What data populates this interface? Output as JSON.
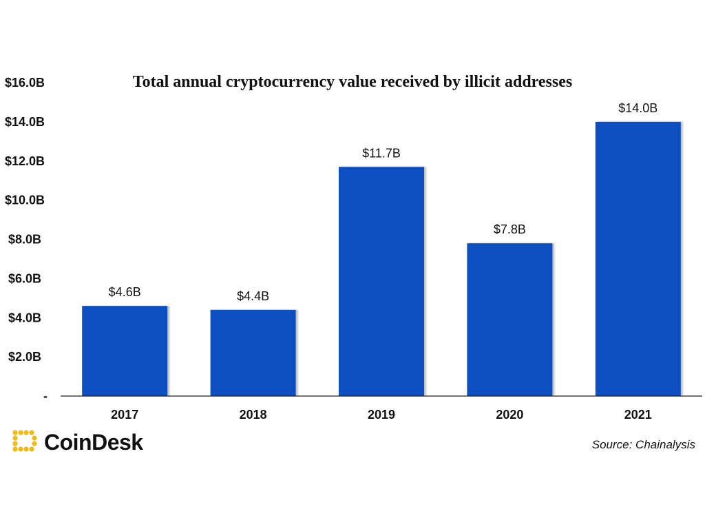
{
  "chart_data": {
    "type": "bar",
    "title": "Total annual cryptocurrency value received by illicit addresses",
    "xlabel": "",
    "ylabel": "",
    "categories": [
      "2017",
      "2018",
      "2019",
      "2020",
      "2021"
    ],
    "values": [
      4.6,
      4.4,
      11.7,
      7.8,
      14.0
    ],
    "data_labels": [
      "$4.6B",
      "$4.4B",
      "$11.7B",
      "$7.8B",
      "$14.0B"
    ],
    "ylim": [
      0,
      16
    ],
    "y_ticks": [
      {
        "value": 16,
        "label": "$16.0B"
      },
      {
        "value": 14,
        "label": "$14.0B"
      },
      {
        "value": 12,
        "label": "$12.0B"
      },
      {
        "value": 10,
        "label": "$10.0B"
      },
      {
        "value": 8,
        "label": "$8.0B"
      },
      {
        "value": 6,
        "label": "$6.0B"
      },
      {
        "value": 4,
        "label": "$4.0B"
      },
      {
        "value": 2,
        "label": "$2.0B"
      },
      {
        "value": 0,
        "label": "-"
      }
    ],
    "grid": false,
    "legend": "none",
    "bar_color": "#0B4FC1"
  },
  "brand": {
    "name": "CoinDesk",
    "logo_icon": "coindesk-logo-icon",
    "logo_color": "#F5B915"
  },
  "source": "Source: Chainalysis"
}
